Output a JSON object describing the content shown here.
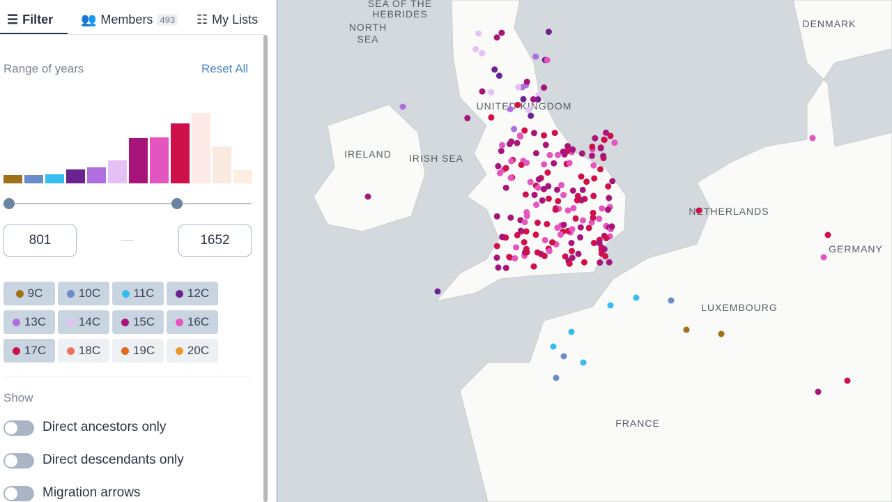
{
  "tabs": [
    {
      "label": "Filter"
    },
    {
      "label": "Members",
      "count": 493
    },
    {
      "label": "My Lists"
    }
  ],
  "filter": {
    "title": "Range of years",
    "reset": "Reset All",
    "histogram": [
      12,
      12,
      13,
      20,
      23,
      33,
      65,
      66,
      86,
      101,
      53,
      19
    ],
    "range": {
      "from": 801,
      "to": 1652
    },
    "centuries": [
      {
        "label": "9C",
        "color": "#a0701a",
        "selected": true
      },
      {
        "label": "10C",
        "color": "#6a8cc8",
        "selected": true
      },
      {
        "label": "11C",
        "color": "#35bdf0",
        "selected": true
      },
      {
        "label": "12C",
        "color": "#6a2390",
        "selected": true
      },
      {
        "label": "13C",
        "color": "#b06ee0",
        "selected": true
      },
      {
        "label": "14C",
        "color": "#e5c0f5",
        "selected": true
      },
      {
        "label": "15C",
        "color": "#a8157a",
        "selected": true
      },
      {
        "label": "16C",
        "color": "#e455c0",
        "selected": true
      },
      {
        "label": "17C",
        "color": "#d0104a",
        "selected": true
      },
      {
        "label": "18C",
        "color": "#f07060",
        "selected": false
      },
      {
        "label": "19C",
        "color": "#e06a20",
        "selected": false
      },
      {
        "label": "20C",
        "color": "#f0962a",
        "selected": false
      }
    ],
    "show_title": "Show",
    "toggles": [
      "Direct ancestors only",
      "Direct descendants only",
      "Migration arrows"
    ]
  },
  "map": {
    "labels": [
      "SEA OF THE",
      "HEBRIDES",
      "NORTH",
      "SEA",
      "DENMARK",
      "UNITED KINGDOM",
      "IRELAND",
      "IRISH SEA",
      "NETHERLANDS",
      "GERMANY",
      "LUXEMBOURG",
      "FRANCE"
    ]
  }
}
